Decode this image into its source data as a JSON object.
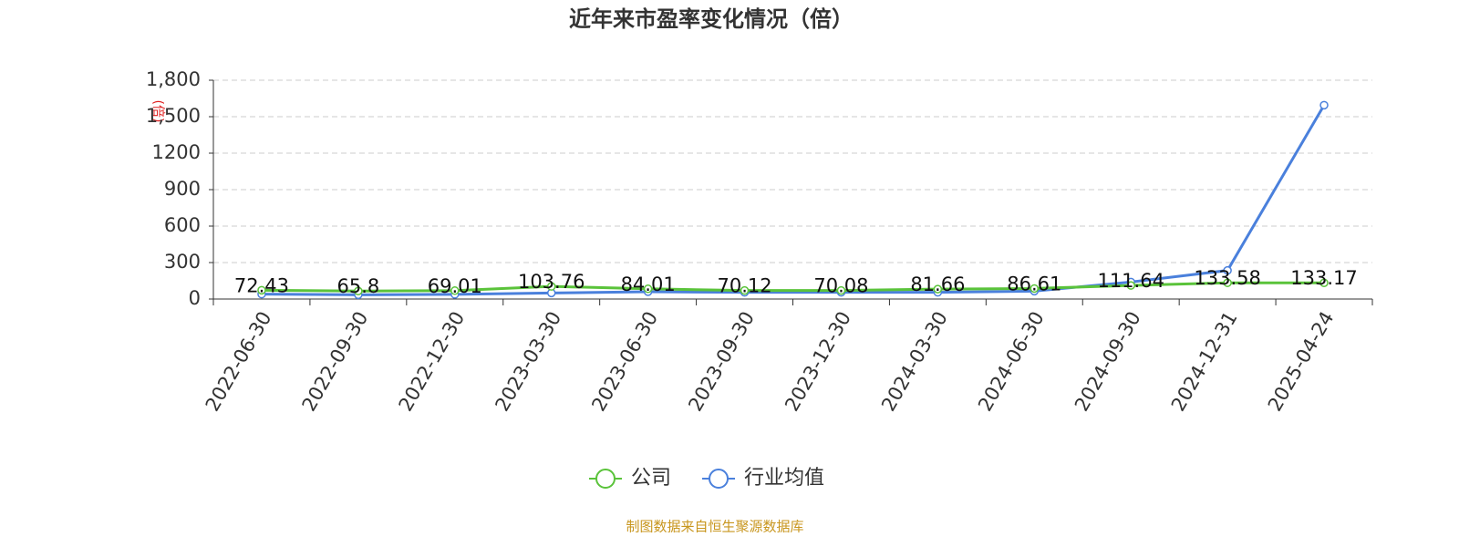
{
  "chart_data": {
    "type": "line",
    "title": "近年来市盈率变化情况（倍）",
    "ylabel": "(倍)",
    "categories": [
      "2022-06-30",
      "2022-09-30",
      "2022-12-30",
      "2023-03-30",
      "2023-06-30",
      "2023-09-30",
      "2023-12-30",
      "2024-03-30",
      "2024-06-30",
      "2024-09-30",
      "2024-12-31",
      "2025-04-24"
    ],
    "series": [
      {
        "name": "公司",
        "color": "#5ac33a",
        "values": [
          72.43,
          65.8,
          69.01,
          103.76,
          84.01,
          70.12,
          70.08,
          81.66,
          86.61,
          111.64,
          133.58,
          133.17
        ]
      },
      {
        "name": "行业均值",
        "color": "#4a80dc",
        "values": [
          40,
          35,
          38,
          50,
          60,
          55,
          55,
          55,
          65,
          140,
          235,
          1595
        ]
      }
    ],
    "ylim": [
      0,
      1800
    ],
    "yticks": [
      0,
      300,
      600,
      900,
      1200,
      {
        "value": 1500,
        "label": "1,500"
      },
      {
        "value": 1800,
        "label": "1,800"
      }
    ],
    "grid": true,
    "source": "制图数据来自恒生聚源数据库"
  }
}
